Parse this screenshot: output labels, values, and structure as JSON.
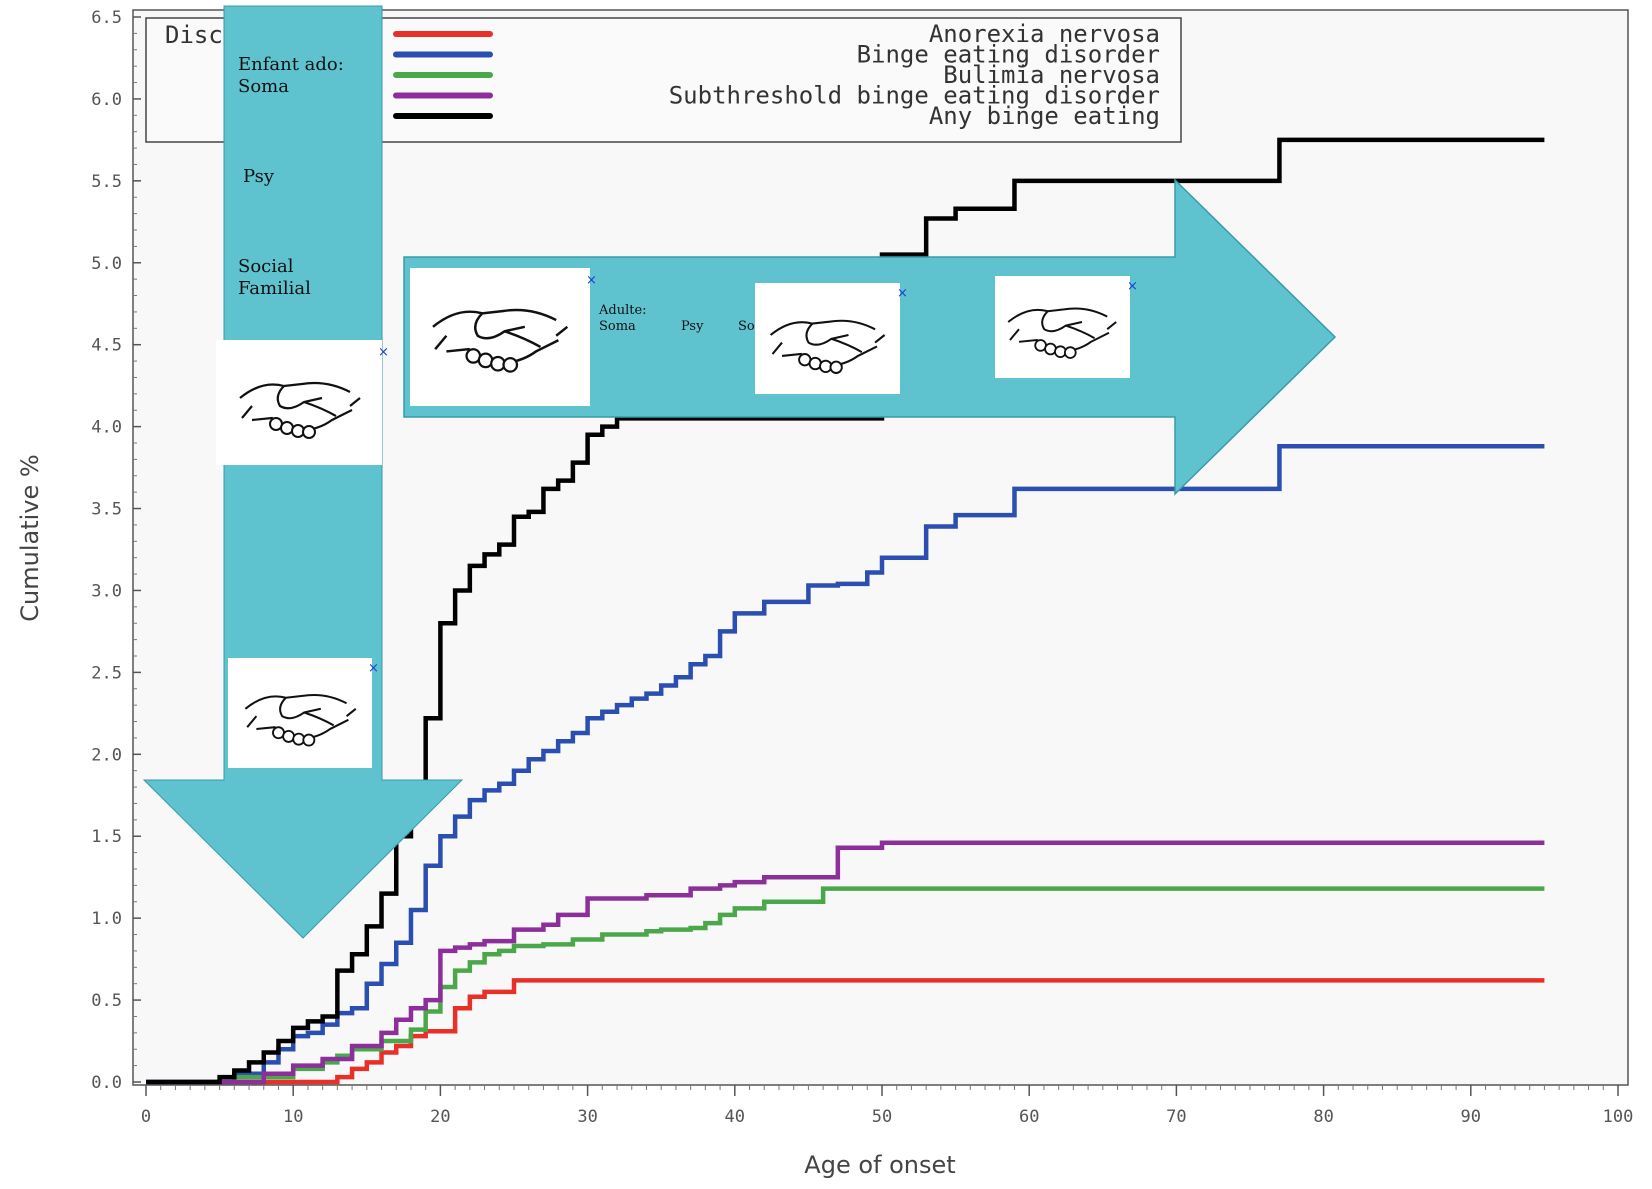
{
  "chart_data": {
    "type": "line",
    "xlabel": "Age of onset",
    "ylabel": "Cumulative %",
    "xlim": [
      0,
      100
    ],
    "ylim": [
      0,
      6.5
    ],
    "x_ticks": [
      0,
      10,
      20,
      30,
      40,
      50,
      60,
      70,
      80,
      90,
      100
    ],
    "y_ticks": [
      "0.0",
      "0.5",
      "1.0",
      "1.5",
      "2.0",
      "2.5",
      "3.0",
      "3.5",
      "4.0",
      "4.5",
      "5.0",
      "5.5",
      "6.0",
      "6.5"
    ],
    "legend_title": "Disc",
    "grid": false,
    "legend_position": "top",
    "series": [
      {
        "name": "Anorexia nervosa",
        "color": "#e8302a",
        "x": [
          0,
          13,
          14,
          15,
          16,
          17,
          18,
          19,
          20,
          21,
          22,
          23,
          25,
          95
        ],
        "y": [
          0,
          0.03,
          0.08,
          0.12,
          0.18,
          0.22,
          0.28,
          0.31,
          0.31,
          0.45,
          0.52,
          0.55,
          0.62,
          0.62
        ]
      },
      {
        "name": "Binge eating disorder",
        "color": "#2a4fb0",
        "x": [
          0,
          6,
          8,
          9,
          10,
          11,
          12,
          13,
          14,
          15,
          16,
          17,
          18,
          19,
          20,
          21,
          22,
          23,
          24,
          25,
          26,
          27,
          28,
          29,
          30,
          31,
          32,
          33,
          34,
          35,
          36,
          37,
          38,
          39,
          40,
          42,
          45,
          47,
          49,
          50,
          53,
          55,
          59,
          77,
          95
        ],
        "y": [
          0,
          0.05,
          0.12,
          0.2,
          0.28,
          0.3,
          0.35,
          0.42,
          0.45,
          0.6,
          0.72,
          0.85,
          1.05,
          1.32,
          1.5,
          1.62,
          1.72,
          1.78,
          1.82,
          1.9,
          1.97,
          2.02,
          2.08,
          2.13,
          2.22,
          2.26,
          2.3,
          2.34,
          2.37,
          2.42,
          2.47,
          2.55,
          2.6,
          2.75,
          2.86,
          2.93,
          3.03,
          3.04,
          3.11,
          3.2,
          3.39,
          3.46,
          3.62,
          3.88,
          3.88
        ]
      },
      {
        "name": "Bulimia nervosa",
        "color": "#4aa84a",
        "x": [
          0,
          6,
          10,
          12,
          13,
          14,
          16,
          18,
          19,
          20,
          21,
          22,
          23,
          24,
          25,
          27,
          29,
          31,
          34,
          35,
          37,
          38,
          39,
          40,
          42,
          46,
          95
        ],
        "y": [
          0,
          0.03,
          0.08,
          0.12,
          0.16,
          0.2,
          0.25,
          0.32,
          0.43,
          0.58,
          0.68,
          0.73,
          0.78,
          0.8,
          0.83,
          0.84,
          0.87,
          0.9,
          0.92,
          0.93,
          0.94,
          0.97,
          1.02,
          1.06,
          1.1,
          1.18,
          1.18
        ]
      },
      {
        "name": "Subthreshold binge eating disorder",
        "color": "#8d2f9a",
        "x": [
          0,
          8,
          10,
          12,
          14,
          16,
          17,
          18,
          19,
          20,
          21,
          22,
          23,
          25,
          27,
          28,
          30,
          34,
          37,
          39,
          40,
          42,
          47,
          50,
          95
        ],
        "y": [
          0,
          0.05,
          0.1,
          0.14,
          0.22,
          0.3,
          0.38,
          0.45,
          0.5,
          0.8,
          0.82,
          0.84,
          0.86,
          0.93,
          0.96,
          1.02,
          1.12,
          1.14,
          1.18,
          1.2,
          1.22,
          1.25,
          1.43,
          1.46,
          1.46
        ]
      },
      {
        "name": "Any binge eating",
        "color": "#000000",
        "x": [
          0,
          5,
          6,
          7,
          8,
          9,
          10,
          11,
          12,
          13,
          14,
          15,
          16,
          17,
          18,
          19,
          20,
          21,
          22,
          23,
          24,
          25,
          26,
          27,
          28,
          29,
          30,
          31,
          32,
          50,
          53,
          55,
          59,
          77,
          95
        ],
        "y": [
          0,
          0.03,
          0.07,
          0.12,
          0.18,
          0.25,
          0.33,
          0.37,
          0.4,
          0.68,
          0.78,
          0.95,
          1.15,
          1.5,
          1.8,
          2.22,
          2.8,
          3.0,
          3.15,
          3.22,
          3.28,
          3.45,
          3.48,
          3.62,
          3.67,
          3.78,
          3.95,
          4.0,
          4.05,
          5.05,
          5.27,
          5.33,
          5.5,
          5.75,
          5.75
        ]
      }
    ]
  },
  "overlay": {
    "color": "#5fc2cf",
    "vertical_arrow_lines": [
      "Enfant ado:",
      "Soma",
      "Psy",
      "Social",
      "Familial"
    ],
    "horizontal_arrow_lines": [
      "Adulte:",
      "Soma",
      "Psy",
      "So"
    ],
    "handshake_count": 5,
    "handshake_icon": "handshake-icon"
  }
}
